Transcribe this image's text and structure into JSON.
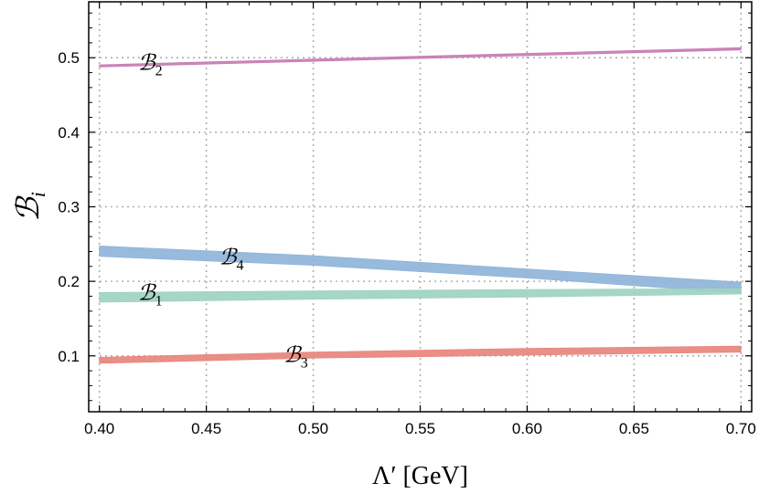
{
  "chart_data": {
    "type": "area",
    "xlabel": "Λ′ [GeV]",
    "ylabel": {
      "main": "ℬ",
      "sub": "i"
    },
    "xlim": [
      0.395,
      0.705
    ],
    "ylim": [
      0.025,
      0.575
    ],
    "x_ticks": [
      "0.40",
      "0.45",
      "0.50",
      "0.55",
      "0.60",
      "0.65",
      "0.70"
    ],
    "x_tick_values": [
      0.4,
      0.45,
      0.5,
      0.55,
      0.6,
      0.65,
      0.7
    ],
    "y_ticks": [
      "0.1",
      "0.2",
      "0.3",
      "0.4",
      "0.5"
    ],
    "y_tick_values": [
      0.1,
      0.2,
      0.3,
      0.4,
      0.5
    ],
    "grid": true,
    "series": [
      {
        "name": "2",
        "label_main": "ℬ",
        "label_sub": "2",
        "color": "#c77cb4",
        "x": [
          0.4,
          0.7
        ],
        "lower": [
          0.4875,
          0.5105
        ],
        "upper": [
          0.4905,
          0.5135
        ],
        "label_at": [
          0.418,
          0.484
        ]
      },
      {
        "name": "4",
        "label_main": "ℬ",
        "label_sub": "4",
        "color": "#8fb4d9",
        "x": [
          0.4,
          0.5,
          0.6,
          0.7
        ],
        "lower": [
          0.2335,
          0.2215,
          0.2045,
          0.184
        ],
        "upper": [
          0.2475,
          0.2345,
          0.2165,
          0.199
        ],
        "label_at": [
          0.456,
          0.223
        ]
      },
      {
        "name": "1",
        "label_main": "ℬ",
        "label_sub": "1",
        "color": "#9ed3c0",
        "x": [
          0.4,
          0.5,
          0.6,
          0.7
        ],
        "lower": [
          0.172,
          0.176,
          0.179,
          0.183
        ],
        "upper": [
          0.185,
          0.187,
          0.189,
          0.19
        ],
        "label_at": [
          0.418,
          0.175
        ]
      },
      {
        "name": "3",
        "label_main": "ℬ",
        "label_sub": "3",
        "color": "#e8867d",
        "x": [
          0.4,
          0.5,
          0.6,
          0.7
        ],
        "lower": [
          0.09,
          0.097,
          0.101,
          0.105
        ],
        "upper": [
          0.098,
          0.105,
          0.11,
          0.113
        ],
        "label_at": [
          0.486,
          0.092
        ]
      }
    ]
  }
}
